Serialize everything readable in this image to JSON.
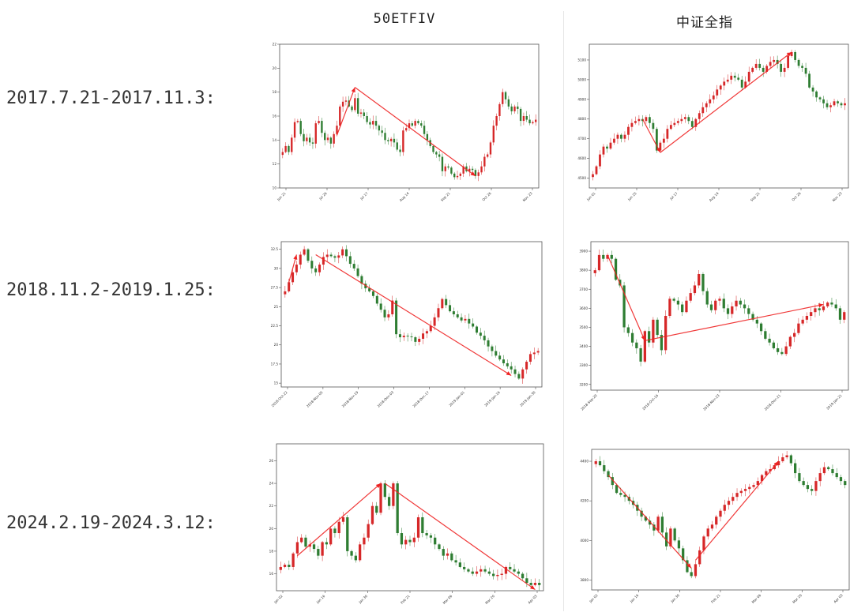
{
  "columns": [
    "50ETFIV",
    "中证全指"
  ],
  "rows": [
    "2017.7.21-2017.11.3:",
    "2018.11.2-2019.1.25:",
    "2024.2.19-2024.3.12:"
  ],
  "colors": {
    "up": "#d62728",
    "down": "#2e7d32",
    "arrow": "#ee2222",
    "frame": "#555555"
  },
  "chart_data": [
    {
      "type": "candlestick",
      "row": 0,
      "col": 0,
      "ylim": [
        10,
        22
      ],
      "yticks": [
        10,
        12,
        14,
        16,
        18,
        20,
        22
      ],
      "xticks": [
        "Jun 21",
        "Jul 26",
        "Jul 17",
        "Aug 14",
        "Sep 21",
        "Oct 26",
        "Nov 23"
      ],
      "closes": [
        13,
        13.5,
        13,
        14.2,
        15.5,
        15.6,
        14.5,
        13.9,
        14.2,
        13.8,
        13.7,
        15.4,
        15.6,
        14.6,
        14,
        14.2,
        13.7,
        14.5,
        15.2,
        16.8,
        17.2,
        17.3,
        16.8,
        16.5,
        17.5,
        16.2,
        16.3,
        16,
        15.5,
        15.3,
        15.6,
        15.2,
        14.8,
        14.6,
        14,
        13.9,
        14.1,
        13.8,
        13.2,
        13,
        14.8,
        15,
        15.4,
        15.2,
        15.6,
        15.4,
        15.2,
        14.5,
        14,
        13.5,
        13,
        12.8,
        12.6,
        11.4,
        11.8,
        11.7,
        11.2,
        10.9,
        11,
        11.2,
        11.8,
        11.4,
        11.6,
        11.5,
        11,
        11.3,
        11.8,
        12.6,
        12.8,
        13.8,
        15.2,
        16,
        17,
        18,
        17.4,
        16.8,
        16.4,
        16.8,
        16.6,
        15.6,
        16,
        15.7,
        15.4,
        15.5,
        15.7
      ],
      "arrows": [
        {
          "from": [
            18,
            14.4
          ],
          "to": [
            24,
            18.4
          ],
          "head": true
        },
        {
          "from": [
            24,
            18.4
          ],
          "to": [
            64,
            11
          ],
          "head": true
        }
      ]
    },
    {
      "type": "candlestick",
      "row": 0,
      "col": 1,
      "ylim": [
        4450,
        5180
      ],
      "yticks": [
        4500,
        4600,
        4700,
        4800,
        4900,
        5000,
        5100
      ],
      "xticks": [
        "Jun 01",
        "Jun 25",
        "Jul 17",
        "Aug 14",
        "Sep 21",
        "Oct 26",
        "Nov 23"
      ],
      "closes": [
        4520,
        4560,
        4620,
        4660,
        4650,
        4680,
        4700,
        4720,
        4700,
        4720,
        4760,
        4780,
        4790,
        4800,
        4790,
        4810,
        4780,
        4750,
        4640,
        4680,
        4700,
        4750,
        4770,
        4780,
        4790,
        4800,
        4810,
        4790,
        4760,
        4800,
        4830,
        4860,
        4880,
        4900,
        4920,
        4950,
        4970,
        4990,
        5000,
        5020,
        5010,
        5000,
        4960,
        4990,
        5040,
        5060,
        5080,
        5060,
        5040,
        5070,
        5090,
        5100,
        5080,
        5040,
        5060,
        5120,
        5140,
        5100,
        5070,
        5060,
        5030,
        4960,
        4940,
        4910,
        4900,
        4880,
        4860,
        4870,
        4890,
        4880,
        4870,
        4880
      ],
      "arrows": [
        {
          "from": [
            14,
            4800
          ],
          "to": [
            19,
            4630
          ],
          "head": true
        },
        {
          "from": [
            19,
            4630
          ],
          "to": [
            56,
            5140
          ],
          "head": true
        }
      ]
    },
    {
      "type": "candlestick",
      "row": 1,
      "col": 0,
      "ylim": [
        14.5,
        33.5
      ],
      "yticks": [
        15.0,
        17.5,
        20.0,
        22.5,
        25.0,
        27.5,
        30.0,
        32.5
      ],
      "xticks": [
        "2018-Oct-22",
        "2018-Nov-05",
        "2018-Nov-19",
        "2018-Dec-03",
        "2018-Dec-17",
        "2019-Jan-01",
        "2019-Jan-16",
        "2019-Jan-30"
      ],
      "closes": [
        27,
        28.2,
        29.5,
        30.5,
        31.8,
        32.5,
        31,
        30,
        29.5,
        30.5,
        31.5,
        31.8,
        31.6,
        31.4,
        31.7,
        32.5,
        31.6,
        30.6,
        30,
        29,
        28,
        27.4,
        27,
        26.4,
        25.4,
        24.6,
        23.6,
        24,
        25.8,
        21.4,
        21,
        21.2,
        21.1,
        21,
        20.4,
        20.8,
        21.5,
        21.8,
        22.5,
        23.6,
        24.8,
        26,
        25.2,
        24.4,
        24,
        23.6,
        23.2,
        23.4,
        22.8,
        22.4,
        21.6,
        21.2,
        20.6,
        19.8,
        19.2,
        18.6,
        18.1,
        17.6,
        17.2,
        16.8,
        16.2,
        15.6,
        16.8,
        17.8,
        18.8,
        19,
        19.2
      ],
      "arrows": [
        {
          "from": [
            1,
            28.2
          ],
          "to": [
            3,
            31.8
          ],
          "head": true
        },
        {
          "from": [
            8,
            31.8
          ],
          "to": [
            59,
            16
          ],
          "head": true
        }
      ]
    },
    {
      "type": "candlestick",
      "row": 1,
      "col": 1,
      "ylim": [
        3170,
        3950
      ],
      "yticks": [
        3200,
        3300,
        3400,
        3500,
        3600,
        3700,
        3800,
        3900
      ],
      "xticks": [
        "2018-Sep-20",
        "2018-Oct-16",
        "2018-Nov-23",
        "2018-Dec-21",
        "2019-Jan-21"
      ],
      "closes": [
        3800,
        3880,
        3860,
        3880,
        3860,
        3750,
        3720,
        3500,
        3470,
        3420,
        3390,
        3320,
        3480,
        3420,
        3540,
        3460,
        3380,
        3560,
        3650,
        3640,
        3620,
        3580,
        3640,
        3680,
        3720,
        3780,
        3690,
        3620,
        3590,
        3640,
        3650,
        3600,
        3570,
        3610,
        3640,
        3620,
        3600,
        3570,
        3540,
        3520,
        3480,
        3440,
        3420,
        3390,
        3370,
        3360,
        3400,
        3450,
        3470,
        3520,
        3540,
        3560,
        3580,
        3600,
        3590,
        3610,
        3630,
        3620,
        3600,
        3540,
        3580
      ],
      "arrows": [
        {
          "from": [
            3,
            3880
          ],
          "to": [
            12,
            3430
          ],
          "head": true
        },
        {
          "from": [
            12,
            3430
          ],
          "to": [
            55,
            3620
          ],
          "head": true
        }
      ]
    },
    {
      "type": "candlestick",
      "row": 2,
      "col": 0,
      "ylim": [
        14.5,
        27.5
      ],
      "yticks": [
        16,
        18,
        20,
        22,
        24,
        26
      ],
      "xticks": [
        "Jan 02",
        "Jan 16",
        "Jan 30",
        "Feb 21",
        "Mar 06",
        "Mar 20",
        "Apr 03"
      ],
      "closes": [
        16.6,
        16.8,
        16.6,
        17.8,
        18.8,
        19.2,
        18.4,
        18.6,
        18.2,
        17.6,
        18.8,
        18.6,
        20,
        19.6,
        20.6,
        21,
        18,
        17.6,
        17.2,
        18.6,
        19.2,
        20.4,
        22,
        21.4,
        24,
        22.8,
        22,
        24,
        19.6,
        18.6,
        19,
        18.8,
        19.2,
        21,
        19.6,
        19.4,
        19.2,
        18.6,
        18.2,
        17.6,
        17.8,
        17.2,
        17,
        16.6,
        16.4,
        16.2,
        16,
        16.2,
        16.4,
        16.2,
        16,
        15.8,
        15.9,
        16,
        16.6,
        16.4,
        16.2,
        16,
        15.6,
        15.2,
        15,
        15.2,
        15
      ],
      "arrows": [
        {
          "from": [
            4,
            17.6
          ],
          "to": [
            24,
            24
          ],
          "head": true
        },
        {
          "from": [
            25,
            24
          ],
          "to": [
            61,
            14.6
          ],
          "head": true
        }
      ]
    },
    {
      "type": "candlestick",
      "row": 2,
      "col": 1,
      "ylim": [
        3750,
        4460
      ],
      "yticks": [
        3800,
        4000,
        4200,
        4400
      ],
      "xticks": [
        "Jan 02",
        "Jan 16",
        "Jan 30",
        "Feb 21",
        "Mar 06",
        "Mar 20",
        "Apr 03"
      ],
      "closes": [
        4400,
        4380,
        4350,
        4320,
        4280,
        4240,
        4230,
        4220,
        4200,
        4180,
        4150,
        4120,
        4100,
        4080,
        4050,
        4120,
        4040,
        3970,
        4060,
        4000,
        3960,
        3900,
        3840,
        3820,
        3880,
        3950,
        4020,
        4060,
        4080,
        4120,
        4150,
        4180,
        4200,
        4220,
        4240,
        4250,
        4260,
        4270,
        4280,
        4300,
        4330,
        4350,
        4360,
        4380,
        4400,
        4420,
        4430,
        4390,
        4340,
        4300,
        4280,
        4260,
        4250,
        4300,
        4340,
        4370,
        4360,
        4340,
        4320,
        4300,
        4280
      ],
      "arrows": [
        {
          "from": [
            3,
            4330
          ],
          "to": [
            23,
            3860
          ],
          "head": true
        },
        {
          "from": [
            24,
            3900
          ],
          "to": [
            44,
            4400
          ],
          "head": true
        }
      ]
    }
  ]
}
